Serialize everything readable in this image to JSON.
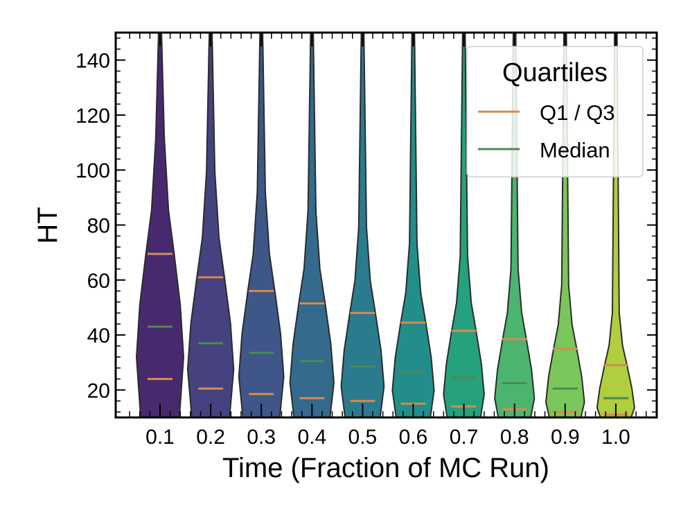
{
  "chart_data": {
    "type": "violin",
    "title": "",
    "xlabel": "Time (Fraction of MC Run)",
    "ylabel": "HT",
    "ylim": [
      10,
      150
    ],
    "yticks": [
      20,
      40,
      60,
      80,
      100,
      120,
      140
    ],
    "ytick_labels": [
      "20",
      "40",
      "60",
      "80",
      "100",
      "120",
      "140"
    ],
    "categories": [
      "0.1",
      "0.2",
      "0.3",
      "0.4",
      "0.5",
      "0.6",
      "0.7",
      "0.8",
      "0.9",
      "1.0"
    ],
    "q1": [
      24,
      20.5,
      18.5,
      17,
      16,
      15,
      14,
      13,
      12,
      11
    ],
    "median": [
      43,
      37,
      33.5,
      30.5,
      28.5,
      26.5,
      24.5,
      22.5,
      20.5,
      17
    ],
    "q3": [
      69.5,
      61,
      56,
      51.5,
      48,
      44.5,
      41.5,
      38.5,
      35,
      29
    ],
    "fill_colors": [
      "#472a6e",
      "#46427f",
      "#3e5688",
      "#346a8c",
      "#2a7b8e",
      "#218e8b",
      "#25a17e",
      "#4bb56f",
      "#7ac65b",
      "#afce40"
    ],
    "legend": {
      "title": "Quartiles",
      "entries": [
        {
          "label": "Q1 / Q3",
          "color": "#d98a4e"
        },
        {
          "label": "Median",
          "color": "#4c8a52"
        }
      ],
      "position": "top-right"
    }
  },
  "colors": {
    "quartile": "#d98a4e",
    "median": "#4c8a52",
    "outline": "#2b2b2b"
  }
}
